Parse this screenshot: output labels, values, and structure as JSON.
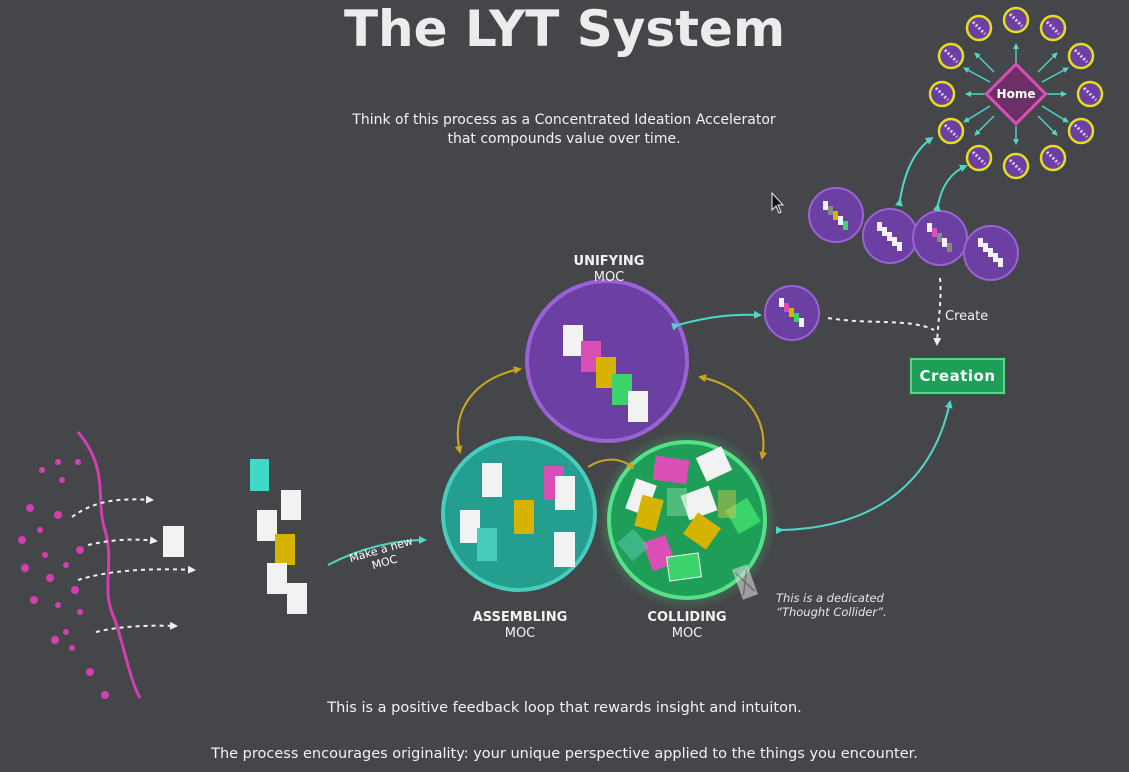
{
  "title": "The LYT System",
  "subtitle_line1": "Think of this process as a Concentrated Ideation Accelerator",
  "subtitle_line2": "that compounds value over time.",
  "unifying": {
    "line1": "UNIFYING",
    "line2": "MOC"
  },
  "assembling": {
    "line1": "ASSEMBLING",
    "line2": "MOC"
  },
  "colliding": {
    "line1": "COLLIDING",
    "line2": "MOC"
  },
  "make_moc_line1": "Make a new",
  "make_moc_line2": "MOC",
  "collider_note_line1": "This is a dedicated",
  "collider_note_line2": "“Thought Collider”.",
  "create_label": "Create",
  "creation_label": "Creation",
  "home_label": "Home",
  "footer_line1": "This is a positive feedback loop that rewards insight and intuiton.",
  "footer_line2": "The process encourages originality: your unique perspective applied to the things you encounter.",
  "colors": {
    "background": "#45464a",
    "purple": "#8b4fc4",
    "teal": "#2fb3a3",
    "green": "#3bd36b",
    "magenta": "#d94fb6",
    "yellow": "#d6b300",
    "arrow_teal": "#4fd6c4",
    "arrow_gold": "#c9a41f"
  }
}
